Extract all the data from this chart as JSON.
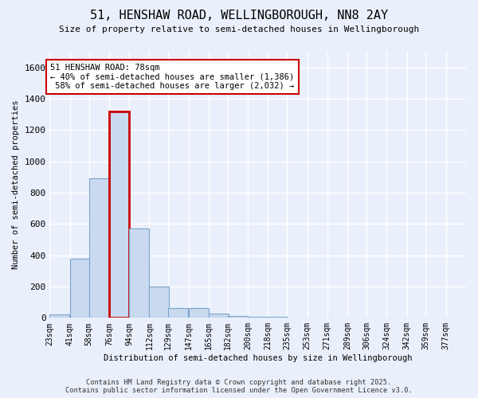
{
  "title": "51, HENSHAW ROAD, WELLINGBOROUGH, NN8 2AY",
  "subtitle": "Size of property relative to semi-detached houses in Wellingborough",
  "xlabel": "Distribution of semi-detached houses by size in Wellingborough",
  "ylabel": "Number of semi-detached properties",
  "bins": [
    23,
    41,
    58,
    76,
    94,
    112,
    129,
    147,
    165,
    182,
    200,
    218,
    235,
    253,
    271,
    289,
    306,
    324,
    342,
    359,
    377
  ],
  "bin_labels": [
    "23sqm",
    "41sqm",
    "58sqm",
    "76sqm",
    "94sqm",
    "112sqm",
    "129sqm",
    "147sqm",
    "165sqm",
    "182sqm",
    "200sqm",
    "218sqm",
    "235sqm",
    "253sqm",
    "271sqm",
    "289sqm",
    "306sqm",
    "324sqm",
    "342sqm",
    "359sqm",
    "377sqm"
  ],
  "values": [
    20,
    380,
    890,
    1320,
    570,
    200,
    65,
    65,
    25,
    10,
    5,
    5,
    2,
    0,
    0,
    2,
    0,
    0,
    0,
    0,
    0
  ],
  "bar_color": "#c9d9f0",
  "bar_edge_color": "#7aa4cc",
  "highlight_bin_index": 3,
  "highlight_edge_color": "#cc0000",
  "ylim": [
    0,
    1700
  ],
  "yticks": [
    0,
    200,
    400,
    600,
    800,
    1000,
    1200,
    1400,
    1600
  ],
  "property_sqm": 78,
  "pct_smaller": 40,
  "count_smaller": 1386,
  "pct_larger": 58,
  "count_larger": 2032,
  "background_color": "#eaf0fb",
  "grid_color": "#ffffff",
  "annotation_box_color": "#ffffff",
  "annotation_box_edge": "#cc0000",
  "footer_line1": "Contains HM Land Registry data © Crown copyright and database right 2025.",
  "footer_line2": "Contains public sector information licensed under the Open Government Licence v3.0."
}
